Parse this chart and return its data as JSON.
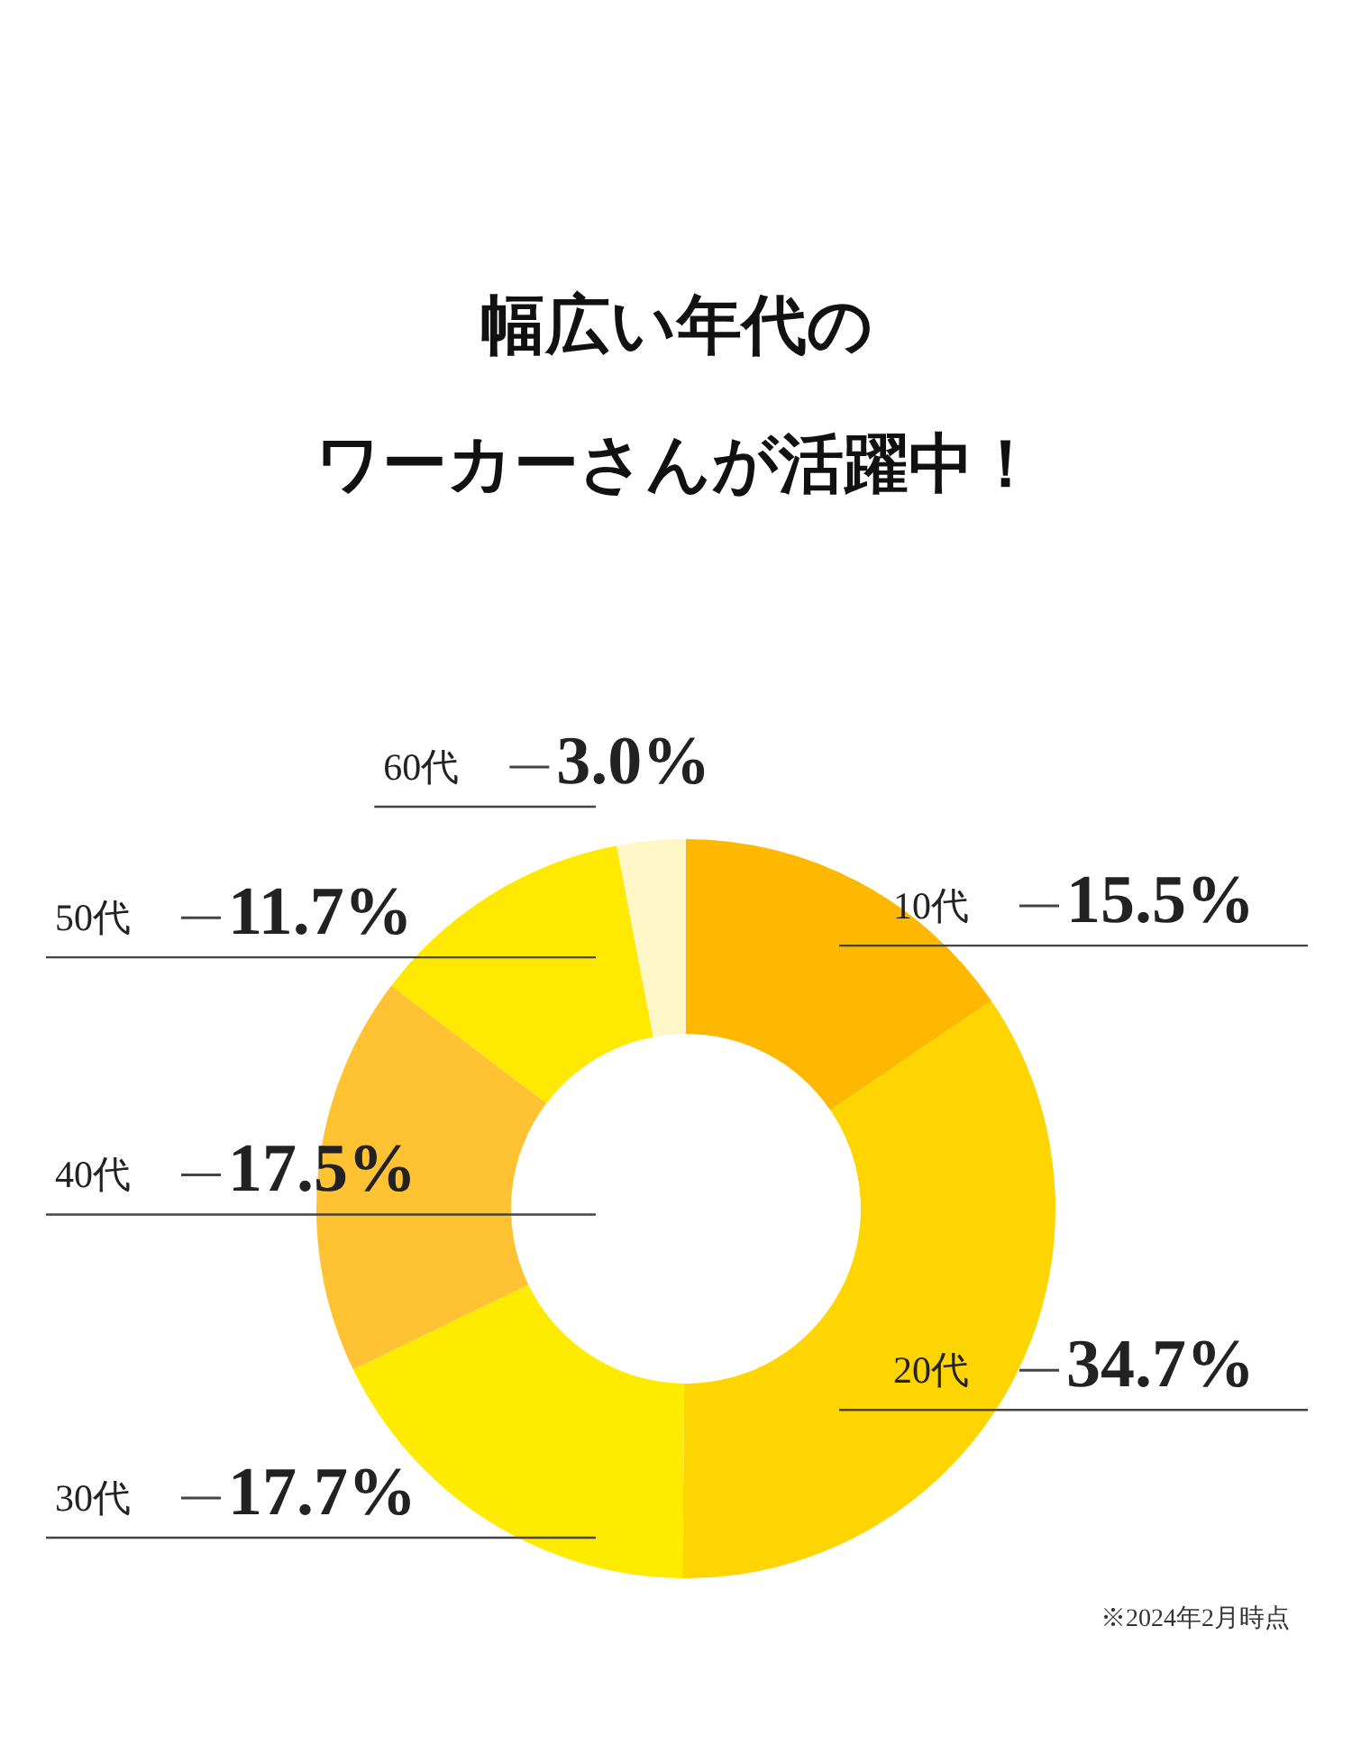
{
  "chart_data": {
    "type": "donut",
    "title": "幅広い年代の",
    "subtitle": "ワーカーさんが活躍中！",
    "categories": [
      "10代",
      "20代",
      "30代",
      "40代",
      "50代",
      "60代"
    ],
    "values": [
      15.5,
      34.7,
      17.7,
      17.5,
      11.7,
      3.0
    ],
    "colors": [
      "#feb800",
      "#ffd500",
      "#ffeb00",
      "#ffc233",
      "#ffe900",
      "#fff6c8"
    ],
    "value_labels": [
      "15.5%",
      "34.7%",
      "17.7%",
      "17.5%",
      "11.7%",
      "3.0%"
    ],
    "annotations": [
      "※2024年2月時点"
    ]
  }
}
